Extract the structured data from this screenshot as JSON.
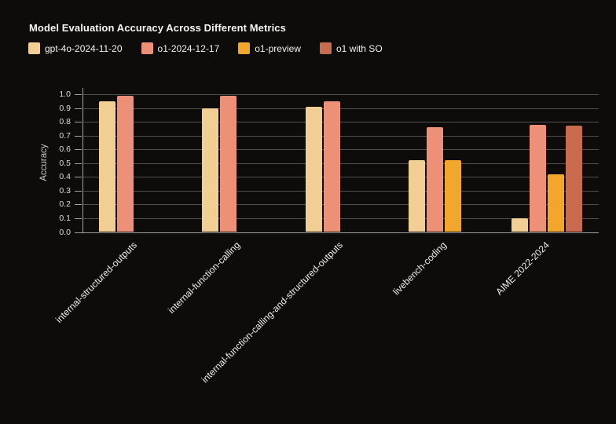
{
  "title": "Model Evaluation Accuracy Across Different Metrics",
  "colors": {
    "background": "#0d0c0a",
    "gridline": "#4f4f4f",
    "axis": "#a3a3a3",
    "title_text": "#f5f5f5",
    "tick_text": "#dedede"
  },
  "chart_data": {
    "type": "bar",
    "title": "Model Evaluation Accuracy Across Different Metrics",
    "xlabel": "",
    "ylabel": "Accuracy",
    "ylim": [
      0.0,
      1.0
    ],
    "ytick_step": 0.1,
    "ytick_labels": [
      "0.0",
      "0.1",
      "0.2",
      "0.3",
      "0.4",
      "0.5",
      "0.6",
      "0.7",
      "0.8",
      "0.9",
      "1.0"
    ],
    "grid": true,
    "legend_position": "top-left",
    "categories": [
      "internal-structured-outputs",
      "internal-function-calling",
      "internal-function-calling-and-structured-outputs",
      "livebench-coding",
      "AIME 2022-2024"
    ],
    "series": [
      {
        "name": "gpt-4o-2024-11-20",
        "color": "#f0ce94",
        "values": [
          0.95,
          0.9,
          0.91,
          0.52,
          0.1
        ]
      },
      {
        "name": "o1-2024-12-17",
        "color": "#ed9078",
        "values": [
          0.99,
          0.99,
          0.95,
          0.76,
          0.78
        ]
      },
      {
        "name": "o1-preview",
        "color": "#f0a72c",
        "values": [
          null,
          null,
          null,
          0.52,
          0.42
        ]
      },
      {
        "name": "o1 with SO",
        "color": "#c96b4f",
        "values": [
          null,
          null,
          null,
          null,
          0.77
        ]
      }
    ]
  }
}
